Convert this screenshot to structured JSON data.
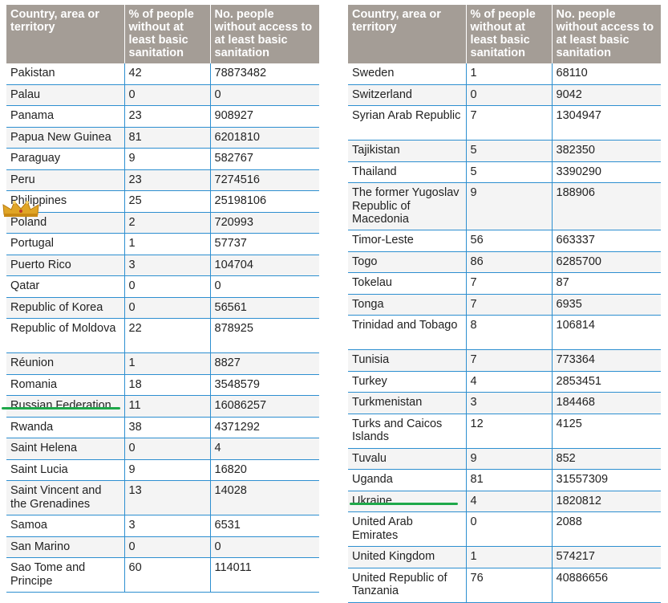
{
  "left_table": {
    "headers": [
      "Country, area or territory",
      "% of people without at least basic sanitation",
      "No. people without access to at least basic sanitation"
    ],
    "rows": [
      [
        "Pakistan",
        "42",
        "78873482"
      ],
      [
        "Palau",
        "0",
        "0"
      ],
      [
        "Panama",
        "23",
        "908927"
      ],
      [
        "Papua New Guinea",
        "81",
        "6201810"
      ],
      [
        "Paraguay",
        "9",
        "582767"
      ],
      [
        "Peru",
        "23",
        "7274516"
      ],
      [
        "Philippines",
        "25",
        "25198106"
      ],
      [
        "Poland",
        "2",
        "720993"
      ],
      [
        "Portugal",
        "1",
        "57737"
      ],
      [
        "Puerto Rico",
        "3",
        "104704"
      ],
      [
        "Qatar",
        "0",
        "0"
      ],
      [
        "Republic of Korea",
        "0",
        "56561"
      ],
      [
        "Republic of Moldova",
        "22",
        "878925"
      ],
      [
        "Réunion",
        "1",
        "8827"
      ],
      [
        "Romania",
        "18",
        "3548579"
      ],
      [
        "Russian Federation",
        "11",
        "16086257"
      ],
      [
        "Rwanda",
        "38",
        "4371292"
      ],
      [
        "Saint Helena",
        "0",
        "4"
      ],
      [
        "Saint Lucia",
        "9",
        "16820"
      ],
      [
        "Saint Vincent and the Grenadines",
        "13",
        "14028"
      ],
      [
        "Samoa",
        "3",
        "6531"
      ],
      [
        "San Marino",
        "0",
        "0"
      ],
      [
        "Sao Tome and Principe",
        "60",
        "114011"
      ]
    ]
  },
  "right_table": {
    "headers": [
      "Country, area or territory",
      "% of people without at least basic sanitation",
      "No. people without access to at least basic sanitation"
    ],
    "rows": [
      [
        "Sweden",
        "1",
        "68110"
      ],
      [
        "Switzerland",
        "0",
        "9042"
      ],
      [
        "Syrian Arab Republic",
        "7",
        "1304947"
      ],
      [
        "Tajikistan",
        "5",
        "382350"
      ],
      [
        "Thailand",
        "5",
        "3390290"
      ],
      [
        "The former Yugoslav Republic of Macedonia",
        "9",
        "188906"
      ],
      [
        "Timor-Leste",
        "56",
        "663337"
      ],
      [
        "Togo",
        "86",
        "6285700"
      ],
      [
        "Tokelau",
        "7",
        "87"
      ],
      [
        "Tonga",
        "7",
        "6935"
      ],
      [
        "Trinidad and Tobago",
        "8",
        "106814"
      ],
      [
        "Tunisia",
        "7",
        "773364"
      ],
      [
        "Turkey",
        "4",
        "2853451"
      ],
      [
        "Turkmenistan",
        "3",
        "184468"
      ],
      [
        "Turks and Caicos Islands",
        "12",
        "4125"
      ],
      [
        "Tuvalu",
        "9",
        "852"
      ],
      [
        "Uganda",
        "81",
        "31557309"
      ],
      [
        "Ukraine",
        "4",
        "1820812"
      ],
      [
        "United Arab Emirates",
        "0",
        "2088"
      ],
      [
        "United Kingdom",
        "1",
        "574217"
      ],
      [
        "United Republic of Tanzania",
        "76",
        "40886656"
      ]
    ]
  },
  "colors": {
    "header_bg": "#a49d96",
    "row_border": "#2d8fd0",
    "highlight_underline": "#1ea84a",
    "crown": "#e0a526"
  },
  "icons": {
    "crown": "crown-icon"
  }
}
